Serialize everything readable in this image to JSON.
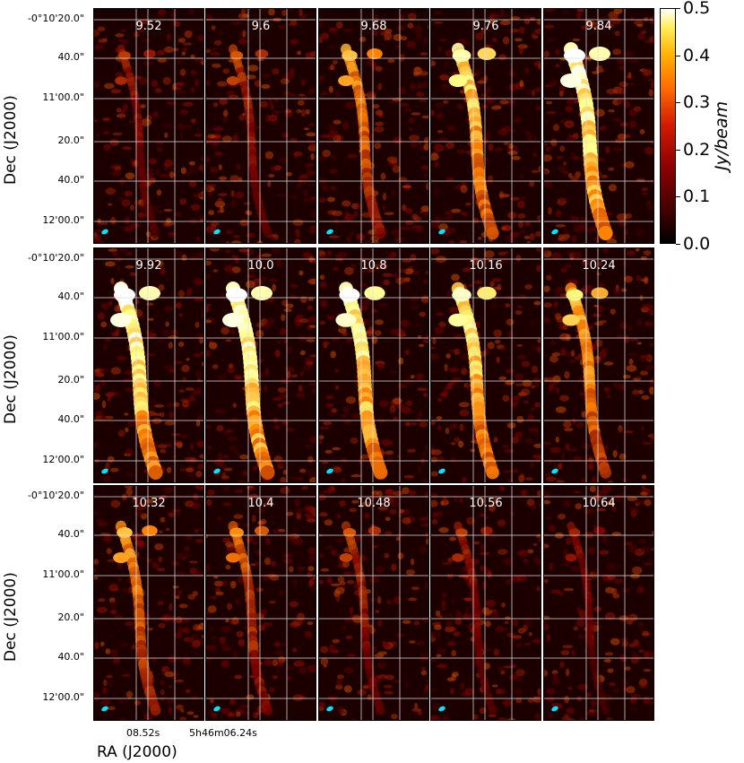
{
  "chart_data": {
    "type": "heatmap",
    "panels": [
      {
        "label": "9.52"
      },
      {
        "label": "9.6"
      },
      {
        "label": "9.68"
      },
      {
        "label": "9.76"
      },
      {
        "label": "9.84"
      },
      {
        "label": "9.92"
      },
      {
        "label": "10.0"
      },
      {
        "label": "10.8"
      },
      {
        "label": "10.16"
      },
      {
        "label": "10.24"
      },
      {
        "label": "10.32"
      },
      {
        "label": "10.4"
      },
      {
        "label": "10.48"
      },
      {
        "label": "10.56"
      },
      {
        "label": "10.64"
      }
    ],
    "panel_intensity": [
      0.35,
      0.4,
      0.6,
      0.8,
      1.0,
      1.0,
      1.0,
      0.95,
      0.85,
      0.7,
      0.6,
      0.5,
      0.4,
      0.35,
      0.3
    ],
    "ylabel": "Dec (J2000)",
    "xlabel": "RA (J2000)",
    "dec_ticks": [
      "-0°10'20.0\"",
      "40.0\"",
      "11'00.0\"",
      "20.0\"",
      "40.0\"",
      "12'00.0\""
    ],
    "ra_ticks": [
      "08.52s",
      "5h46m06.24s"
    ],
    "colorbar": {
      "label": "Jy/beam",
      "ticks": [
        "0.0",
        "0.1",
        "0.2",
        "0.3",
        "0.4",
        "0.5"
      ],
      "range": [
        0.0,
        0.5
      ],
      "colormap": "afmhot"
    },
    "beam_color": "#00e5ff",
    "grid": true
  }
}
